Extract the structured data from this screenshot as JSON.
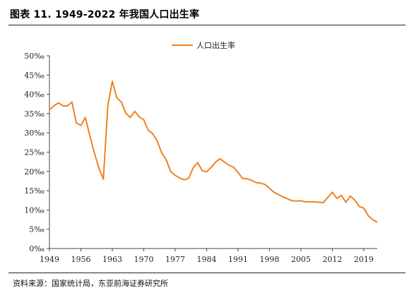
{
  "figure": {
    "title": "图表 11. 1949-2022 年我国人口出生率",
    "source": "资料来源：国家统计局，东亚前海证券研究所"
  },
  "chart_data": {
    "type": "line",
    "title": "图表 11. 1949-2022 年我国人口出生率",
    "xlabel": "",
    "ylabel": "",
    "ylim": [
      0,
      50
    ],
    "yticks": [
      "0‰",
      "5‰",
      "10‰",
      "15‰",
      "20‰",
      "25‰",
      "30‰",
      "35‰",
      "40‰",
      "45‰",
      "50‰"
    ],
    "xticks": [
      "1949",
      "1956",
      "1963",
      "1970",
      "1977",
      "1984",
      "1991",
      "1998",
      "2005",
      "2012",
      "2019"
    ],
    "legend": "top-center",
    "grid": false,
    "colors": {
      "series": "#F08122"
    },
    "x": [
      1949,
      1950,
      1951,
      1952,
      1953,
      1954,
      1955,
      1956,
      1957,
      1958,
      1959,
      1960,
      1961,
      1962,
      1963,
      1964,
      1965,
      1966,
      1967,
      1968,
      1969,
      1970,
      1971,
      1972,
      1973,
      1974,
      1975,
      1976,
      1977,
      1978,
      1979,
      1980,
      1981,
      1982,
      1983,
      1984,
      1985,
      1986,
      1987,
      1988,
      1989,
      1990,
      1991,
      1992,
      1993,
      1994,
      1995,
      1996,
      1997,
      1998,
      1999,
      2000,
      2001,
      2002,
      2003,
      2004,
      2005,
      2006,
      2007,
      2008,
      2009,
      2010,
      2011,
      2012,
      2013,
      2014,
      2015,
      2016,
      2017,
      2018,
      2019,
      2020,
      2021,
      2022
    ],
    "series": [
      {
        "name": "人口出生率",
        "values": [
          36.0,
          37.0,
          37.8,
          37.0,
          37.0,
          38.0,
          32.6,
          31.9,
          34.0,
          29.2,
          24.8,
          20.9,
          18.0,
          37.0,
          43.4,
          39.1,
          38.0,
          35.1,
          34.0,
          35.6,
          34.1,
          33.4,
          30.7,
          29.8,
          27.9,
          24.8,
          23.0,
          19.9,
          19.0,
          18.3,
          17.8,
          18.2,
          20.9,
          22.3,
          20.2,
          19.9,
          21.0,
          22.4,
          23.3,
          22.4,
          21.6,
          21.1,
          19.7,
          18.2,
          18.1,
          17.7,
          17.1,
          17.0,
          16.6,
          15.6,
          14.6,
          14.0,
          13.4,
          12.9,
          12.4,
          12.3,
          12.4,
          12.1,
          12.1,
          12.1,
          12.0,
          11.9,
          13.3,
          14.6,
          13.0,
          13.8,
          12.0,
          13.6,
          12.6,
          10.9,
          10.5,
          8.5,
          7.5,
          6.8
        ]
      }
    ]
  }
}
